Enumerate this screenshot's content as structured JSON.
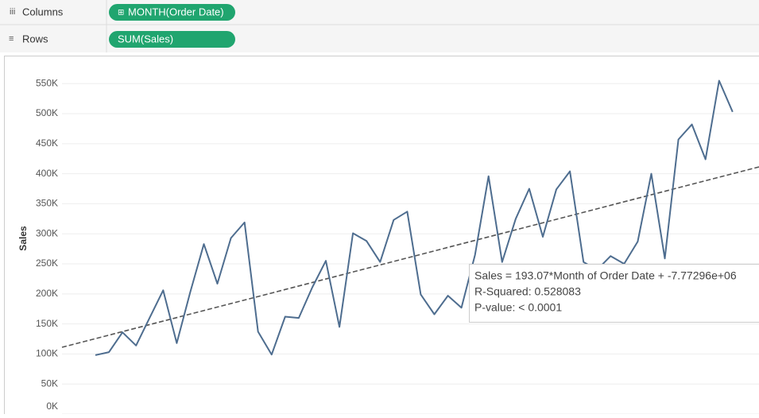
{
  "shelves": {
    "columns": {
      "label": "Columns",
      "pill": "MONTH(Order Date)"
    },
    "rows": {
      "label": "Rows",
      "pill": "SUM(Sales)"
    }
  },
  "chart_data": {
    "type": "line",
    "y_label": "Sales",
    "categories": [
      null,
      null,
      null,
      null,
      null,
      null,
      null,
      null,
      null,
      null,
      null,
      null,
      null,
      null,
      null,
      null,
      null,
      null,
      null,
      null,
      null,
      null,
      null,
      null,
      null,
      null,
      null,
      null,
      null,
      null,
      null,
      null,
      null,
      null,
      null,
      null,
      null,
      null,
      null,
      null,
      null,
      null,
      null,
      null,
      null,
      null,
      null,
      null
    ],
    "series": [
      {
        "name": "SUM(Sales)",
        "color": "#4e6d8f",
        "values": [
          98000,
          103000,
          136000,
          114000,
          160000,
          206000,
          118000,
          203000,
          283000,
          217000,
          293000,
          319000,
          137000,
          99000,
          162000,
          160000,
          211000,
          255000,
          145000,
          301000,
          288000,
          253000,
          323000,
          337000,
          199000,
          166000,
          197000,
          177000,
          265000,
          396000,
          253000,
          325000,
          375000,
          295000,
          374000,
          404000,
          253000,
          240000,
          263000,
          250000,
          287000,
          400000,
          259000,
          457000,
          482000,
          424000,
          555000,
          503000
        ]
      }
    ],
    "ylim": [
      0,
      590000
    ],
    "yticks": [
      {
        "value": 0,
        "label": "0K"
      },
      {
        "value": 50000,
        "label": "50K"
      },
      {
        "value": 100000,
        "label": "100K"
      },
      {
        "value": 150000,
        "label": "150K"
      },
      {
        "value": 200000,
        "label": "200K"
      },
      {
        "value": 250000,
        "label": "250K"
      },
      {
        "value": 300000,
        "label": "300K"
      },
      {
        "value": 350000,
        "label": "350K"
      },
      {
        "value": 400000,
        "label": "400K"
      },
      {
        "value": 450000,
        "label": "450K"
      },
      {
        "value": 500000,
        "label": "500K"
      },
      {
        "value": 550000,
        "label": "550K"
      }
    ],
    "grid": true,
    "annotation": [
      "Sales = 193.07*Month of Order Date + -7.77296e+06",
      "R-Squared: 0.528083",
      "P-value: < 0.0001"
    ]
  }
}
